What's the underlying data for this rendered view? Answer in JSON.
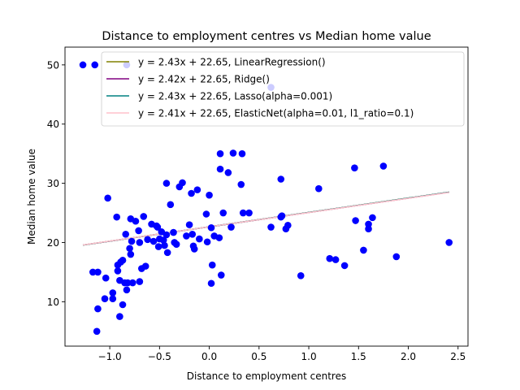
{
  "chart_data": {
    "type": "scatter",
    "title": "Distance to employment centres vs Median home value",
    "xlabel": "Distance to employment centres",
    "ylabel": "Median home value",
    "xlim": [
      -1.45,
      2.6
    ],
    "ylim": [
      2.5,
      53
    ],
    "xticks": [
      -1.0,
      -0.5,
      0.0,
      0.5,
      1.0,
      1.5,
      2.0,
      2.5
    ],
    "xtick_labels": [
      "−1.0",
      "−0.5",
      "0.0",
      "0.5",
      "1.0",
      "1.5",
      "2.0",
      "2.5"
    ],
    "yticks": [
      10,
      20,
      30,
      40,
      50
    ],
    "ytick_labels": [
      "10",
      "20",
      "30",
      "40",
      "50"
    ],
    "grid": false,
    "legend_position": "top-right",
    "points": {
      "color": "#0000ff",
      "x": [
        -1.27,
        -1.15,
        -0.83,
        0.62,
        -1.17,
        -1.12,
        -1.12,
        -1.13,
        -1.05,
        -1.04,
        -1.02,
        -0.97,
        -0.97,
        -0.93,
        -0.92,
        -0.92,
        -0.9,
        -0.9,
        -0.89,
        -0.87,
        -0.87,
        -0.85,
        -0.84,
        -0.83,
        -0.82,
        -0.8,
        -0.79,
        -0.79,
        -0.78,
        -0.77,
        -0.74,
        -0.71,
        -0.7,
        -0.7,
        -0.68,
        -0.66,
        -0.64,
        -0.62,
        -0.58,
        -0.56,
        -0.53,
        -0.52,
        -0.51,
        -0.5,
        -0.48,
        -0.46,
        -0.45,
        -0.43,
        -0.43,
        -0.42,
        -0.39,
        -0.36,
        -0.35,
        -0.33,
        -0.3,
        -0.27,
        -0.23,
        -0.2,
        -0.18,
        -0.17,
        -0.16,
        -0.15,
        -0.12,
        -0.1,
        -0.03,
        -0.02,
        0.0,
        0.02,
        0.02,
        0.03,
        0.05,
        0.1,
        0.11,
        0.11,
        0.12,
        0.14,
        0.19,
        0.22,
        0.24,
        0.32,
        0.33,
        0.34,
        0.4,
        0.62,
        0.72,
        0.72,
        0.73,
        0.77,
        0.79,
        0.92,
        1.1,
        1.21,
        1.27,
        1.36,
        1.46,
        1.47,
        1.55,
        1.6,
        1.6,
        1.64,
        1.75,
        1.88,
        2.41
      ],
      "y": [
        50,
        50,
        50,
        46.2,
        15,
        15,
        8.8,
        5,
        10.5,
        14,
        27.5,
        10.5,
        11.5,
        24.3,
        16.2,
        15.2,
        7.5,
        13.6,
        16.7,
        17,
        9.5,
        13.2,
        21.4,
        12,
        13.2,
        19,
        24,
        18,
        20.2,
        13.2,
        23.6,
        22,
        20,
        13.4,
        15.6,
        24.4,
        16,
        20.5,
        23.1,
        20.2,
        22.8,
        22.6,
        19.3,
        20.6,
        21.8,
        20.4,
        19.5,
        30,
        21.3,
        18.3,
        26.4,
        21.7,
        20,
        19.7,
        29.4,
        30.1,
        21.1,
        23,
        28.3,
        21.4,
        19.4,
        18.9,
        28.9,
        20.6,
        24.8,
        20.1,
        28,
        13.1,
        22.5,
        16.2,
        21.1,
        20.8,
        35,
        32.4,
        14.5,
        25,
        31.8,
        22.6,
        35.1,
        29.8,
        35,
        25,
        25,
        22.6,
        24.3,
        30.7,
        24.5,
        22.3,
        22.9,
        14.4,
        29.1,
        17.3,
        17.1,
        16.1,
        32.6,
        23.7,
        18.7,
        23.1,
        22.3,
        24.2,
        32.9,
        17.6,
        20
      ]
    },
    "series": [
      {
        "name": "y = 2.43x + 22.65, LinearRegression()",
        "color": "#808000",
        "slope": 2.43,
        "intercept": 22.65,
        "x_range": [
          -1.27,
          2.41
        ]
      },
      {
        "name": "y = 2.42x + 22.65, Ridge()",
        "color": "#800080",
        "slope": 2.42,
        "intercept": 22.65,
        "x_range": [
          -1.27,
          2.41
        ]
      },
      {
        "name": "y = 2.43x + 22.65, Lasso(alpha=0.001)",
        "color": "#008080",
        "slope": 2.43,
        "intercept": 22.65,
        "x_range": [
          -1.27,
          2.41
        ]
      },
      {
        "name": "y = 2.41x + 22.65, ElasticNet(alpha=0.01, l1_ratio=0.1)",
        "color": "#ffc0cb",
        "slope": 2.41,
        "intercept": 22.65,
        "x_range": [
          -1.27,
          2.41
        ]
      }
    ]
  }
}
